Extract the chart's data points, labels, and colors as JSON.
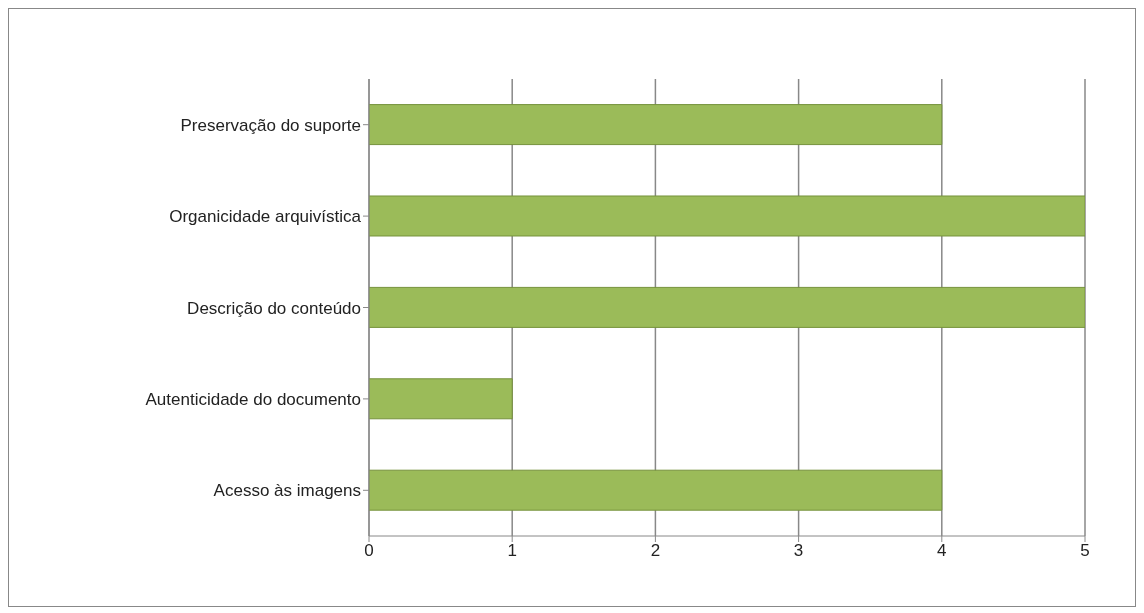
{
  "chart_data": {
    "type": "bar",
    "orientation": "horizontal",
    "categories": [
      "Preservação do suporte",
      "Organicidade arquivística",
      "Descrição do conteúdo",
      "Autenticidade do documento",
      "Acesso às imagens"
    ],
    "values": [
      4,
      5,
      5,
      1,
      4
    ],
    "color": "#9bbb59",
    "xlim": [
      0,
      5
    ],
    "xticks": [
      0,
      1,
      2,
      3,
      4,
      5
    ],
    "grid": "x"
  }
}
